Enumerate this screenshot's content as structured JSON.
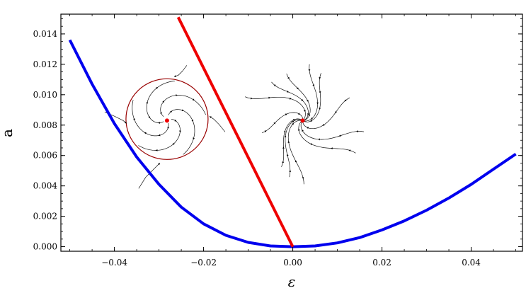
{
  "chart_data": {
    "type": "line",
    "title": "",
    "xlabel": "ε",
    "ylabel": "a",
    "xlim": [
      -0.052,
      0.0515
    ],
    "ylim": [
      -0.0003,
      0.0153
    ],
    "xticks": [
      "−0.04",
      "−0.02",
      "0.00",
      "0.02",
      "0.04"
    ],
    "xtick_values": [
      -0.04,
      -0.02,
      0.0,
      0.02,
      0.04
    ],
    "yticks": [
      "0.000",
      "0.002",
      "0.004",
      "0.006",
      "0.008",
      "0.010",
      "0.012",
      "0.014"
    ],
    "ytick_values": [
      0.0,
      0.002,
      0.004,
      0.006,
      0.008,
      0.01,
      0.012,
      0.014
    ],
    "grid": false,
    "series": [
      {
        "color": "#0000ee",
        "x": [
          -0.05,
          -0.045,
          -0.04,
          -0.035,
          -0.03,
          -0.025,
          -0.02,
          -0.015,
          -0.01,
          -0.005,
          0.0,
          0.005,
          0.01,
          0.015,
          0.02,
          0.025,
          0.03,
          0.035,
          0.04,
          0.045,
          0.05
        ],
        "y": [
          0.0136,
          0.0107,
          0.0081,
          0.0059,
          0.0041,
          0.0026,
          0.0015,
          0.00075,
          0.00028,
          5e-05,
          0.0,
          5e-05,
          0.00025,
          0.0006,
          0.0011,
          0.0017,
          0.0024,
          0.0032,
          0.0041,
          0.0051,
          0.0061
        ]
      },
      {
        "color": "#ee0000",
        "x": [
          -0.0257,
          0.0
        ],
        "y": [
          0.0151,
          0.0
        ]
      }
    ],
    "insets": [
      {
        "name": "stable-limit-cycle",
        "center_x": -0.0282,
        "center_y": 0.0083,
        "fixed_point_color": "#ee0000",
        "cycle_color": "#990000"
      },
      {
        "name": "stable-focus",
        "center_x": 0.0022,
        "center_y": 0.0083,
        "fixed_point_color": "#ee0000"
      }
    ]
  }
}
